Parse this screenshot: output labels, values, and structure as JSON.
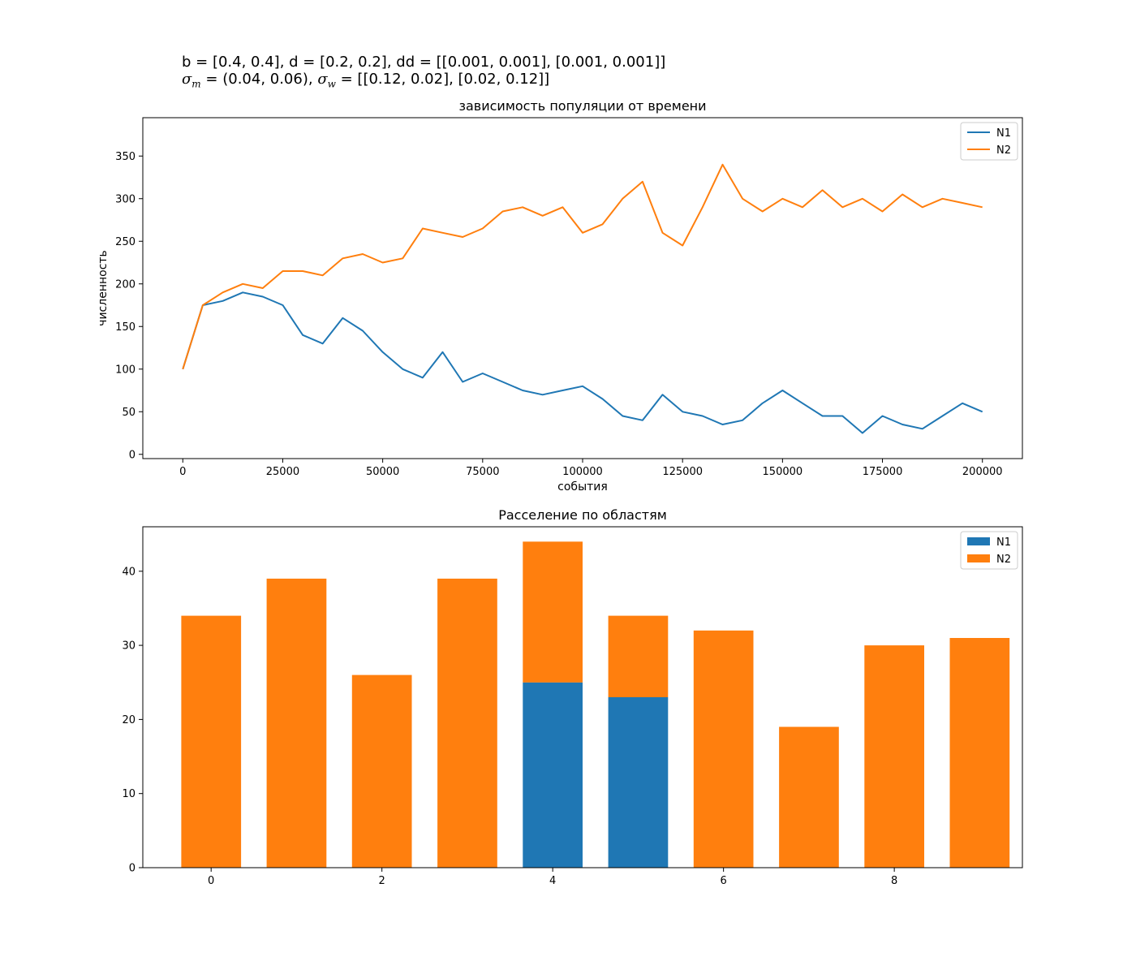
{
  "header": {
    "line1": "b = [0.4, 0.4], d = [0.2, 0.2], dd = [[0.001, 0.001], [0.001, 0.001]]",
    "line2_m": "(0.04, 0.06), ",
    "line2_w": "[[0.12, 0.02], [0.02, 0.12]]"
  },
  "colors": {
    "N1": "#1f77b4",
    "N2": "#ff7f0e"
  },
  "chart_data": [
    {
      "type": "line",
      "title": "зависимость популяции от времени",
      "xlabel": "события",
      "ylabel": "численность",
      "xlim": [
        -10000,
        210000
      ],
      "ylim": [
        -5,
        395
      ],
      "xticks": [
        0,
        25000,
        50000,
        75000,
        100000,
        125000,
        150000,
        175000,
        200000
      ],
      "yticks": [
        0,
        50,
        100,
        150,
        200,
        250,
        300,
        350
      ],
      "legend": "top-right",
      "x": [
        0,
        5000,
        10000,
        15000,
        20000,
        25000,
        30000,
        35000,
        40000,
        45000,
        50000,
        55000,
        60000,
        65000,
        70000,
        75000,
        80000,
        85000,
        90000,
        95000,
        100000,
        105000,
        110000,
        115000,
        120000,
        125000,
        130000,
        135000,
        140000,
        145000,
        150000,
        155000,
        160000,
        165000,
        170000,
        175000,
        180000,
        185000,
        190000,
        195000,
        200000
      ],
      "series": [
        {
          "name": "N1",
          "values": [
            100,
            175,
            180,
            190,
            185,
            175,
            140,
            130,
            160,
            145,
            120,
            100,
            90,
            120,
            85,
            95,
            85,
            75,
            70,
            75,
            80,
            65,
            45,
            40,
            70,
            50,
            45,
            35,
            40,
            60,
            75,
            60,
            45,
            45,
            25,
            45,
            35,
            30,
            45,
            60,
            50
          ]
        },
        {
          "name": "N2",
          "values": [
            100,
            175,
            190,
            200,
            195,
            215,
            215,
            210,
            230,
            235,
            225,
            230,
            265,
            260,
            255,
            265,
            285,
            290,
            280,
            290,
            260,
            270,
            300,
            320,
            260,
            245,
            290,
            340,
            300,
            285,
            300,
            290,
            310,
            290,
            300,
            285,
            305,
            290,
            300,
            295,
            290
          ]
        }
      ]
    },
    {
      "type": "bar",
      "title": "Расселение по областям",
      "xlim": [
        -0.8,
        9.5
      ],
      "ylim": [
        0,
        46
      ],
      "xticks": [
        0,
        2,
        4,
        6,
        8
      ],
      "yticks": [
        0,
        10,
        20,
        30,
        40
      ],
      "legend": "top-right",
      "stacked": true,
      "categories": [
        0,
        1,
        2,
        3,
        4,
        5,
        6,
        7,
        8,
        9
      ],
      "series": [
        {
          "name": "N1",
          "values": [
            0,
            0,
            0,
            0,
            25,
            23,
            0,
            0,
            0,
            0
          ]
        },
        {
          "name": "N2",
          "values": [
            34,
            39,
            26,
            39,
            19,
            11,
            32,
            19,
            30,
            31
          ]
        }
      ]
    }
  ]
}
